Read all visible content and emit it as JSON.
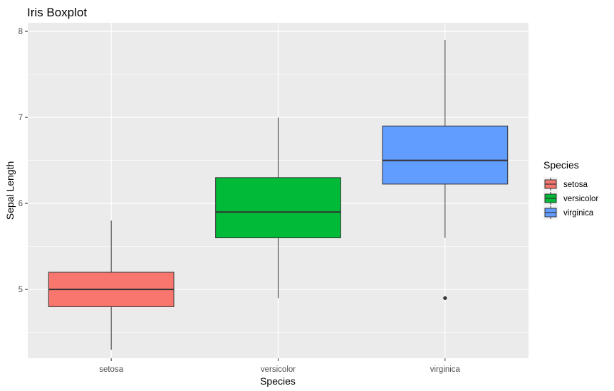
{
  "chart_data": {
    "type": "boxplot",
    "title": "Iris Boxplot",
    "xlabel": "Species",
    "ylabel": "Sepal Length",
    "categories": [
      "setosa",
      "versicolor",
      "virginica"
    ],
    "ylim": [
      4.2,
      8.1
    ],
    "yticks": [
      5,
      6,
      7,
      8
    ],
    "grid": true,
    "legend": {
      "title": "Species",
      "placement": "right",
      "entries": [
        "setosa",
        "versicolor",
        "virginica"
      ]
    },
    "series": [
      {
        "category": "setosa",
        "min": 4.3,
        "q1": 4.8,
        "median": 5.0,
        "q3": 5.2,
        "max": 5.8,
        "outliers": [],
        "color": "#F8766D"
      },
      {
        "category": "versicolor",
        "min": 4.9,
        "q1": 5.6,
        "median": 5.9,
        "q3": 6.3,
        "max": 7.0,
        "outliers": [],
        "color": "#00BA38"
      },
      {
        "category": "virginica",
        "min": 5.6,
        "q1": 6.225,
        "median": 6.5,
        "q3": 6.9,
        "max": 7.9,
        "outliers": [
          4.9
        ],
        "color": "#619CFF"
      }
    ],
    "colors": {
      "panel_background": "#EBEBEB",
      "grid_major": "#FFFFFF",
      "box_outline": "#333333"
    }
  }
}
